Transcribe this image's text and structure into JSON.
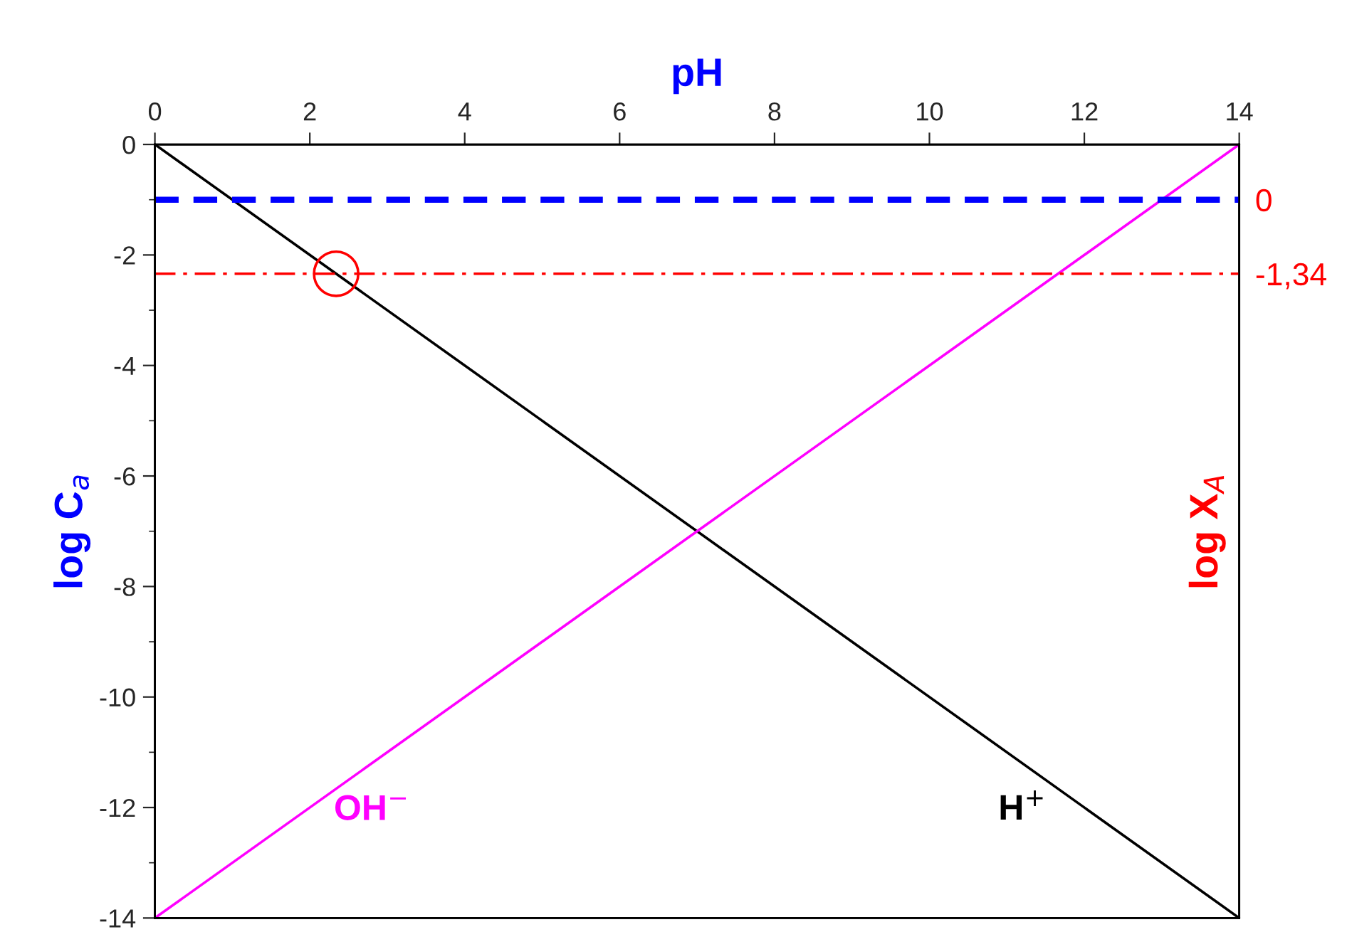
{
  "chart_data": {
    "type": "line",
    "xlabel": "pH",
    "ylabel": "log C$_{a}$",
    "y2label": "log X$_{A}$",
    "x": [
      0,
      14
    ],
    "xlim": [
      0,
      14
    ],
    "xticks": [
      0,
      2,
      4,
      6,
      8,
      10,
      12,
      14
    ],
    "ylim": [
      -14,
      0
    ],
    "yticks": [
      0,
      -2,
      -4,
      -6,
      -8,
      -10,
      -12,
      -14
    ],
    "y2lim": [
      -13,
      1
    ],
    "y2ticks": [
      0,
      {
        "value": -1.34,
        "label": "-1,34"
      }
    ],
    "series": [
      {
        "name": "H$^{+}$",
        "color": "#000000",
        "values": [
          0,
          -14
        ]
      },
      {
        "name": "OH$^{−}$",
        "color": "#ff00ff",
        "values": [
          -14,
          0
        ]
      },
      {
        "type": "scatter",
        "color": "#ff0000",
        "x": [
          2.34
        ],
        "values": [
          -2.34
        ],
        "marker": "circle"
      }
    ],
    "ref_lines": [
      {
        "axis": "y2",
        "value": 0,
        "color": "#0000ff",
        "line_style": "dashed"
      },
      {
        "axis": "y2",
        "value": -1.34,
        "color": "#ff0000",
        "line_style": "dashdot"
      }
    ],
    "grid": false
  }
}
